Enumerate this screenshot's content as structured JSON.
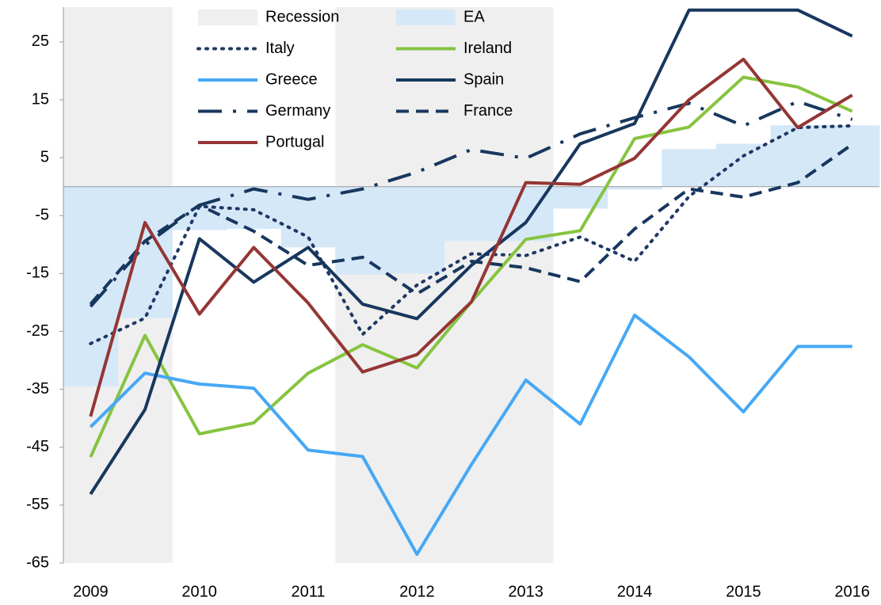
{
  "chart_data": {
    "type": "line",
    "categories": [
      "2009",
      null,
      "2010",
      null,
      "2011",
      null,
      "2012",
      null,
      "2013",
      null,
      "2014",
      null,
      "2015",
      null,
      "2016"
    ],
    "ylim": [
      -65,
      31
    ],
    "yticks": [
      25,
      15,
      5,
      -5,
      -15,
      -25,
      -35,
      -45,
      -55,
      -65
    ],
    "recession": {
      "name": "Recession",
      "color": "#efefef",
      "indices": [
        0,
        1,
        5,
        6,
        7,
        8
      ]
    },
    "area": {
      "name": "EA",
      "color": "#d5e8f8",
      "values": [
        -34.5,
        -22.7,
        -7.5,
        -7.3,
        -10.5,
        -15.2,
        -15,
        -9.4,
        -9.4,
        -3.8,
        -0.5,
        6.5,
        7.4,
        10.6,
        10.6
      ]
    },
    "series": [
      {
        "name": "Italy",
        "color": "#1f3864",
        "style": "dotted",
        "values": [
          -27.1,
          -22.7,
          -3.4,
          -4,
          -8.7,
          -25.5,
          -17,
          -11.6,
          -11.9,
          -8.7,
          -12.9,
          -1.7,
          5.3,
          10.2,
          10.5
        ]
      },
      {
        "name": "Ireland",
        "color": "#86c440",
        "style": "solid",
        "values": [
          -46.7,
          -25.7,
          -42.7,
          -40.8,
          -32.2,
          -27.3,
          -31.3,
          -19.9,
          -9.1,
          -7.6,
          8.3,
          10.3,
          18.9,
          17.2,
          13
        ]
      },
      {
        "name": "Greece",
        "color": "#46a8f5",
        "style": "solid",
        "values": [
          -41.5,
          -32.2,
          -34.1,
          -34.8,
          -45.5,
          -46.6,
          -63.5,
          -48,
          -33.4,
          -41,
          -22.2,
          -29.4,
          -38.9,
          -27.6,
          -27.6
        ]
      },
      {
        "name": "Spain",
        "color": "#17375e",
        "style": "solid",
        "values": [
          -53.1,
          -38.5,
          -9,
          -16.5,
          -10.5,
          -20.3,
          -22.8,
          -13.6,
          -6.2,
          7.4,
          10.9,
          30.5,
          30.5,
          30.5,
          26
        ]
      },
      {
        "name": "Germany",
        "color": "#17375e",
        "style": "dashdot",
        "values": [
          -20.7,
          -10.1,
          -3.2,
          -0.4,
          -2.2,
          -0.4,
          2.5,
          6.4,
          4.9,
          9.1,
          11.9,
          14.4,
          10.5,
          14.7,
          11.6
        ]
      },
      {
        "name": "France",
        "color": "#17375e",
        "style": "dashed",
        "values": [
          -20.3,
          -9.4,
          -3.2,
          -7.7,
          -13.6,
          -12.2,
          -18.5,
          -12.9,
          -14,
          -16.4,
          -7.3,
          -0.4,
          -1.8,
          0.7,
          7.3
        ]
      },
      {
        "name": "Portugal",
        "color": "#943634",
        "style": "solid",
        "values": [
          -39.7,
          -6.2,
          -22,
          -10.5,
          -20.1,
          -32,
          -29,
          -19.9,
          0.7,
          0.4,
          4.9,
          15,
          22,
          10.2,
          15.8
        ]
      }
    ]
  }
}
